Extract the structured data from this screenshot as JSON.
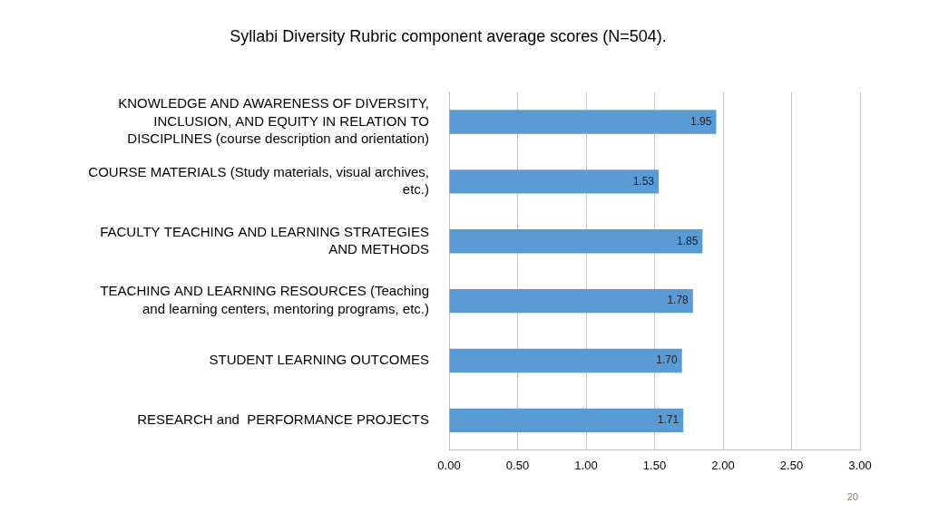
{
  "chart_data": {
    "type": "bar",
    "orientation": "horizontal",
    "title": "Syllabi Diversity Rubric component average scores (N=504).",
    "categories": [
      [
        "KNOWLEDGE AND AWARENESS OF DIVERSITY,",
        "INCLUSION, AND EQUITY IN RELATION TO",
        "DISCIPLINES (course description and orientation)"
      ],
      [
        "COURSE MATERIALS (Study materials, visual archives,",
        "etc.)"
      ],
      [
        "FACULTY TEACHING AND LEARNING STRATEGIES",
        "AND METHODS"
      ],
      [
        "TEACHING AND LEARNING RESOURCES (Teaching",
        "and learning centers, mentoring programs, etc.)"
      ],
      [
        "STUDENT LEARNING OUTCOMES"
      ],
      [
        "RESEARCH and  PERFORMANCE PROJECTS"
      ]
    ],
    "values": [
      1.95,
      1.53,
      1.85,
      1.78,
      1.7,
      1.71
    ],
    "value_labels": [
      "1.95",
      "1.53",
      "1.85",
      "1.78",
      "1.70",
      "1.71"
    ],
    "data_labels": true,
    "color": "#5b9bd5",
    "xlim": [
      0,
      3
    ],
    "xticks": [
      {
        "value": 0,
        "label": "0.00"
      },
      {
        "value": 0.5,
        "label": "0.50"
      },
      {
        "value": 1,
        "label": "1.00"
      },
      {
        "value": 1.5,
        "label": "1.50"
      },
      {
        "value": 2,
        "label": "2.00"
      },
      {
        "value": 2.5,
        "label": "2.50"
      },
      {
        "value": 3,
        "label": "3.00"
      }
    ],
    "grid": true,
    "annotations": [
      "20"
    ]
  }
}
